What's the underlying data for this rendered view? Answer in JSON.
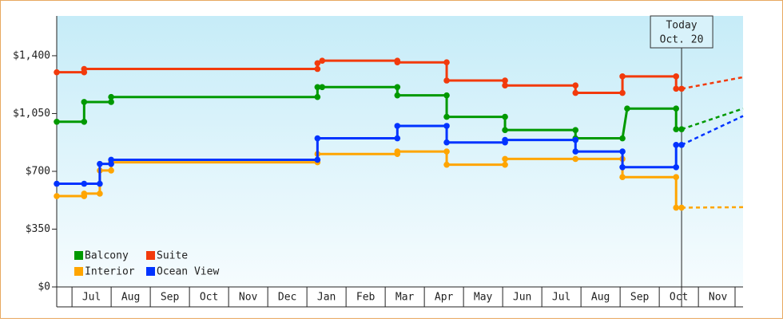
{
  "chart_data": {
    "type": "step-line",
    "months": [
      "Jul",
      "Aug",
      "Sep",
      "Oct",
      "Nov",
      "Dec",
      "Jan",
      "Feb",
      "Mar",
      "Apr",
      "May",
      "Jun",
      "Jul",
      "Aug",
      "Sep",
      "Oct",
      "Nov"
    ],
    "xlim": [
      -0.39,
      17.14
    ],
    "ylim": [
      0,
      1641
    ],
    "yticks": [
      {
        "value": 0,
        "label": "$0"
      },
      {
        "value": 350,
        "label": "$350"
      },
      {
        "value": 700,
        "label": "$700"
      },
      {
        "value": 1050,
        "label": "$1,050"
      },
      {
        "value": 1400,
        "label": "$1,400"
      }
    ],
    "annotation": {
      "lines": [
        "Today",
        "Oct. 20"
      ],
      "x": 15.57
    },
    "series": [
      {
        "name": "Balcony",
        "color": "#009900",
        "x": [
          -0.39,
          0.31,
          0.31,
          1.0,
          1.0,
          6.27,
          6.27,
          6.39,
          8.31,
          8.31,
          9.57,
          9.57,
          11.06,
          11.06,
          12.86,
          12.86,
          14.06,
          14.18,
          15.43,
          15.43,
          15.57
        ],
        "values": [
          1000,
          1000,
          1120,
          1120,
          1150,
          1150,
          1210,
          1210,
          1210,
          1160,
          1160,
          1030,
          1030,
          950,
          950,
          900,
          900,
          1080,
          1080,
          955,
          955
        ],
        "forecast_x": [
          15.57,
          17.14
        ],
        "forecast_values": [
          955,
          1080
        ]
      },
      {
        "name": "Suite",
        "color": "#f23a0c",
        "x": [
          -0.39,
          0.31,
          0.31,
          6.27,
          6.27,
          6.39,
          8.31,
          8.31,
          9.57,
          9.57,
          11.06,
          11.06,
          12.86,
          12.86,
          14.06,
          14.06,
          15.43,
          15.43,
          15.57
        ],
        "values": [
          1300,
          1300,
          1320,
          1320,
          1355,
          1370,
          1370,
          1360,
          1360,
          1250,
          1250,
          1220,
          1220,
          1175,
          1175,
          1275,
          1275,
          1200,
          1200
        ],
        "forecast_x": [
          15.57,
          17.14
        ],
        "forecast_values": [
          1200,
          1270
        ]
      },
      {
        "name": "Interior",
        "color": "#ffa500",
        "x": [
          -0.39,
          0.31,
          0.31,
          0.71,
          0.71,
          1.0,
          1.0,
          6.27,
          6.27,
          8.31,
          8.31,
          9.57,
          9.57,
          11.06,
          11.06,
          12.86,
          14.06,
          14.06,
          15.43,
          15.43,
          15.57
        ],
        "values": [
          550,
          550,
          565,
          565,
          705,
          705,
          755,
          755,
          805,
          805,
          820,
          820,
          740,
          740,
          775,
          775,
          775,
          665,
          665,
          480,
          480
        ],
        "forecast_x": [
          15.57,
          17.14
        ],
        "forecast_values": [
          480,
          483
        ]
      },
      {
        "name": "Ocean View",
        "color": "#0033ff",
        "x": [
          -0.39,
          0.31,
          0.71,
          0.71,
          1.0,
          1.0,
          6.27,
          6.27,
          8.31,
          8.31,
          9.57,
          9.57,
          11.06,
          11.06,
          12.86,
          12.86,
          14.06,
          14.06,
          15.43,
          15.43,
          15.57
        ],
        "values": [
          625,
          625,
          625,
          745,
          745,
          770,
          770,
          900,
          900,
          975,
          975,
          875,
          875,
          890,
          890,
          820,
          820,
          725,
          725,
          860,
          860
        ],
        "forecast_x": [
          15.57,
          17.14
        ],
        "forecast_values": [
          860,
          1035
        ]
      }
    ]
  }
}
